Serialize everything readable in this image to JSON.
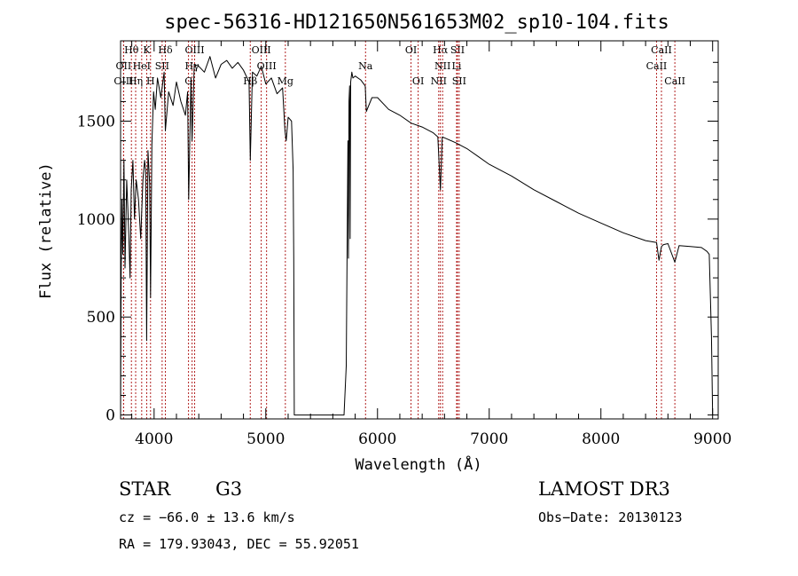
{
  "chart_data": {
    "type": "line",
    "title": "spec-56316-HD121650N561653M02_sp10-104.fits",
    "xlabel": "Wavelength (Å)",
    "ylabel": "Flux (relative)",
    "xlim": [
      3700,
      9050
    ],
    "ylim": [
      -20,
      1910
    ],
    "xticks": [
      4000,
      5000,
      6000,
      7000,
      8000,
      9000
    ],
    "yticks": [
      0,
      500,
      1000,
      1500
    ],
    "series": [
      {
        "name": "flux",
        "x": [
          3700,
          3705,
          3712,
          3720,
          3730,
          3740,
          3755,
          3765,
          3775,
          3785,
          3795,
          3810,
          3825,
          3840,
          3860,
          3880,
          3900,
          3915,
          3925,
          3933,
          3945,
          3960,
          3968,
          3980,
          3995,
          4010,
          4030,
          4060,
          4090,
          4101,
          4130,
          4170,
          4200,
          4240,
          4280,
          4300,
          4310,
          4330,
          4340,
          4360,
          4400,
          4450,
          4500,
          4550,
          4600,
          4650,
          4700,
          4750,
          4800,
          4850,
          4861,
          4880,
          4920,
          4960,
          5000,
          5050,
          5100,
          5150,
          5172,
          5183,
          5200,
          5230,
          5245,
          5250,
          5255,
          5700,
          5720,
          5735,
          5740,
          5745,
          5750,
          5755,
          5760,
          5770,
          5780,
          5800,
          5850,
          5890,
          5900,
          5950,
          6000,
          6100,
          6200,
          6300,
          6400,
          6500,
          6540,
          6563,
          6580,
          6620,
          6700,
          6800,
          6900,
          7000,
          7100,
          7200,
          7400,
          7600,
          7800,
          8000,
          8200,
          8400,
          8498,
          8520,
          8542,
          8560,
          8600,
          8662,
          8700,
          8800,
          8900,
          8950,
          8970,
          8990,
          9000
        ],
        "values": [
          0,
          700,
          1100,
          820,
          1300,
          750,
          1200,
          1050,
          900,
          700,
          1150,
          1300,
          1000,
          1200,
          1100,
          900,
          1200,
          1300,
          1250,
          380,
          1350,
          1180,
          600,
          1380,
          1650,
          1560,
          1720,
          1620,
          1750,
          1450,
          1650,
          1580,
          1700,
          1600,
          1530,
          1650,
          1100,
          1720,
          1400,
          1790,
          1780,
          1750,
          1830,
          1720,
          1790,
          1810,
          1770,
          1800,
          1760,
          1700,
          1300,
          1750,
          1730,
          1780,
          1690,
          1720,
          1640,
          1670,
          1450,
          1400,
          1520,
          1500,
          1250,
          800,
          0,
          0,
          250,
          1400,
          800,
          1600,
          1680,
          900,
          1700,
          1750,
          1720,
          1730,
          1710,
          1680,
          1550,
          1620,
          1620,
          1560,
          1530,
          1490,
          1470,
          1440,
          1420,
          1150,
          1420,
          1410,
          1390,
          1360,
          1320,
          1280,
          1250,
          1220,
          1150,
          1090,
          1030,
          980,
          930,
          890,
          880,
          790,
          860,
          870,
          875,
          780,
          865,
          860,
          855,
          835,
          820,
          400,
          0
        ],
        "color": "#000000"
      }
    ],
    "spectral_lines": [
      {
        "label": "Hθ",
        "wavelength": 3797,
        "row": 0
      },
      {
        "label": "OII",
        "wavelength": 3727,
        "row": 1
      },
      {
        "label": "OIII",
        "wavelength": 3727,
        "row": 2
      },
      {
        "label": "HeI",
        "wavelength": 3889,
        "row": 1
      },
      {
        "label": "Hη",
        "wavelength": 3835,
        "row": 2
      },
      {
        "label": "K",
        "wavelength": 3934,
        "row": 0
      },
      {
        "label": "SII",
        "wavelength": 4072,
        "row": 1
      },
      {
        "label": "H",
        "wavelength": 3968,
        "row": 2
      },
      {
        "label": "Hδ",
        "wavelength": 4101,
        "row": 0
      },
      {
        "label": "OIII",
        "wavelength": 4363,
        "row": 0
      },
      {
        "label": "Hγ",
        "wavelength": 4340,
        "row": 1
      },
      {
        "label": "G",
        "wavelength": 4308,
        "row": 2
      },
      {
        "label": "OIII",
        "wavelength": 4959,
        "row": 0
      },
      {
        "label": "OIII",
        "wavelength": 5007,
        "row": 1
      },
      {
        "label": "Hβ",
        "wavelength": 4861,
        "row": 2
      },
      {
        "label": "Mg",
        "wavelength": 5175,
        "row": 2
      },
      {
        "label": "Na",
        "wavelength": 5893,
        "row": 1
      },
      {
        "label": "OI",
        "wavelength": 6300,
        "row": 0
      },
      {
        "label": "OI",
        "wavelength": 6364,
        "row": 2
      },
      {
        "label": "Hα",
        "wavelength": 6563,
        "row": 0
      },
      {
        "label": "SII",
        "wavelength": 6716,
        "row": 0
      },
      {
        "label": "NII",
        "wavelength": 6583,
        "row": 1
      },
      {
        "label": "Li",
        "wavelength": 6708,
        "row": 1
      },
      {
        "label": "NII",
        "wavelength": 6548,
        "row": 2
      },
      {
        "label": "SII",
        "wavelength": 6731,
        "row": 2
      },
      {
        "label": "CaII",
        "wavelength": 8542,
        "row": 0
      },
      {
        "label": "CaII",
        "wavelength": 8498,
        "row": 1
      },
      {
        "label": "CaII",
        "wavelength": 8662,
        "row": 2
      }
    ],
    "line_color": "#b22222"
  },
  "info": {
    "object_class": "STAR",
    "subclass": "G3",
    "survey": "LAMOST DR3",
    "redshift": "cz = −66.0 ± 13.6 km/s",
    "obs_date": "Obs−Date: 20130123",
    "coords": "RA = 179.93043, DEC =  55.92051"
  }
}
